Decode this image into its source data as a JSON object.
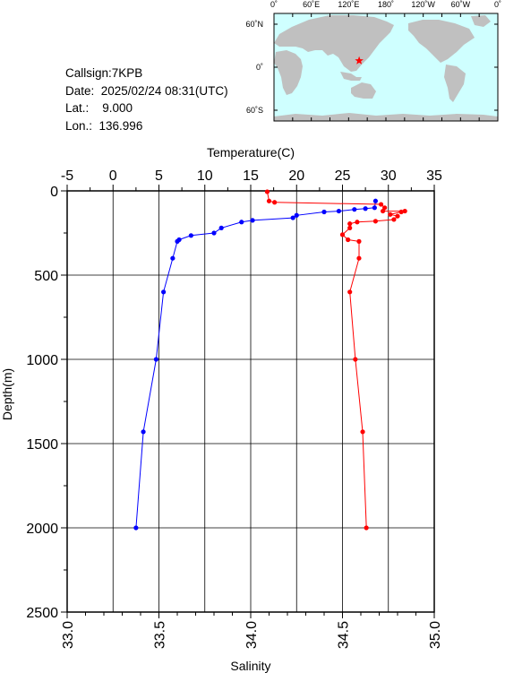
{
  "info": {
    "callsign": "Callsign:7KPB",
    "date": "Date:  2025/02/24 08:31(UTC)",
    "lat": "Lat.:    9.000",
    "lon": "Lon.:  136.996"
  },
  "map": {
    "top_labels": [
      "0˚",
      "60˚E",
      "120˚E",
      "180˚",
      "120˚W",
      "60˚W",
      "0˚"
    ],
    "lat_labels": [
      "60˚N",
      "0˚",
      "60˚S"
    ],
    "marker": {
      "lat": 9.0,
      "lon": 136.996
    },
    "colors": {
      "ocean": "#cfffff",
      "land": "#c0c0c0",
      "marker": "#ff0000"
    }
  },
  "chart_data": {
    "type": "line",
    "ylabel": "Depth(m)",
    "x_top_label": "Temperature(C)",
    "x_bottom_label": "Salinity",
    "ylim": [
      0,
      2500
    ],
    "yticks": [
      "0",
      "500",
      "1000",
      "1500",
      "2000",
      "2500"
    ],
    "xlim_temperature": [
      -5,
      35
    ],
    "xticks_temperature": [
      "-5",
      "0",
      "5",
      "10",
      "15",
      "20",
      "25",
      "30",
      "35"
    ],
    "xlim_salinity": [
      33.0,
      35.0
    ],
    "xticks_salinity": [
      "33.0",
      "33.5",
      "34.0",
      "34.5",
      "35.0"
    ],
    "grid": true,
    "series": [
      {
        "axis": "temperature",
        "color": "#0000ff",
        "points": [
          [
            28.6,
            60
          ],
          [
            28.5,
            100
          ],
          [
            27.5,
            105
          ],
          [
            26.3,
            110
          ],
          [
            24.6,
            120
          ],
          [
            23.0,
            125
          ],
          [
            20.0,
            145
          ],
          [
            19.6,
            160
          ],
          [
            15.2,
            175
          ],
          [
            14.0,
            185
          ],
          [
            11.8,
            220
          ],
          [
            11.0,
            250
          ],
          [
            8.5,
            265
          ],
          [
            7.2,
            290
          ],
          [
            7.0,
            300
          ],
          [
            6.5,
            400
          ],
          [
            5.5,
            600
          ],
          [
            4.7,
            1000
          ],
          [
            3.3,
            1430
          ],
          [
            2.5,
            2000
          ]
        ]
      },
      {
        "axis": "salinity",
        "color": "#ff0000",
        "points": [
          [
            34.09,
            5
          ],
          [
            34.1,
            60
          ],
          [
            34.13,
            68
          ],
          [
            34.71,
            80
          ],
          [
            34.73,
            100
          ],
          [
            34.72,
            120
          ],
          [
            34.84,
            120
          ],
          [
            34.82,
            125
          ],
          [
            34.76,
            140
          ],
          [
            34.8,
            150
          ],
          [
            34.78,
            170
          ],
          [
            34.68,
            180
          ],
          [
            34.58,
            185
          ],
          [
            34.54,
            195
          ],
          [
            34.54,
            220
          ],
          [
            34.5,
            260
          ],
          [
            34.53,
            290
          ],
          [
            34.59,
            300
          ],
          [
            34.59,
            400
          ],
          [
            34.54,
            600
          ],
          [
            34.57,
            1000
          ],
          [
            34.61,
            1430
          ],
          [
            34.63,
            2000
          ]
        ]
      }
    ]
  }
}
